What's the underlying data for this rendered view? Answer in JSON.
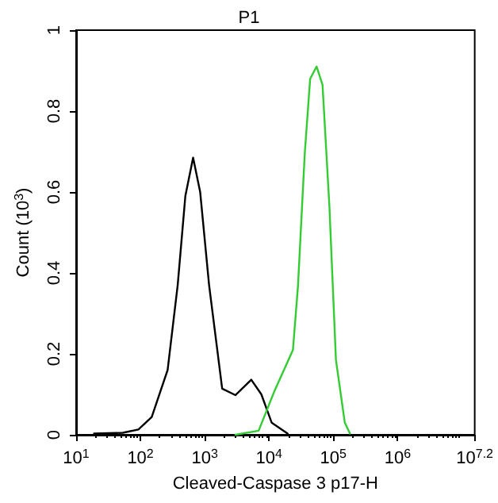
{
  "chart_data": {
    "type": "line",
    "title": "P1",
    "xlabel": "Cleaved-Caspase 3 p17-H",
    "ylabel": "Count (10$^{3}$)",
    "log": "x",
    "grid": false,
    "marker": "none",
    "line_style": "solid",
    "xlim": [
      10,
      15848932
    ],
    "xticks": [
      {
        "value": 10,
        "label": "10$^{1}$"
      },
      {
        "value": 100,
        "label": "10$^{2}$"
      },
      {
        "value": 1000,
        "label": "10$^{3}$"
      },
      {
        "value": 10000,
        "label": "10$^{4}$"
      },
      {
        "value": 100000,
        "label": "10$^{5}$"
      },
      {
        "value": 1000000,
        "label": "10$^{6}$"
      },
      {
        "value": 15848932,
        "label": "10$^{7.2}$"
      }
    ],
    "ylim": [
      0,
      1
    ],
    "yticks": [
      0,
      0.2,
      0.4,
      0.6,
      0.8,
      1
    ],
    "series": [
      {
        "color": "#000000",
        "x": [
          19,
          53,
          93,
          150,
          265,
          380,
          500,
          660,
          850,
          1170,
          1870,
          3000,
          5300,
          7600,
          11000,
          19500
        ],
        "values": [
          0.003,
          0.005,
          0.013,
          0.044,
          0.16,
          0.37,
          0.59,
          0.685,
          0.6,
          0.37,
          0.114,
          0.098,
          0.136,
          0.1,
          0.03,
          0.003
        ]
      },
      {
        "color": "#33cc33",
        "x": [
          3000,
          6900,
          12300,
          23600,
          28300,
          36000,
          43700,
          55000,
          68000,
          87000,
          110000,
          151000,
          182000
        ],
        "values": [
          0,
          0.01,
          0.11,
          0.21,
          0.37,
          0.695,
          0.88,
          0.91,
          0.865,
          0.565,
          0.185,
          0.03,
          0.003
        ]
      }
    ]
  }
}
